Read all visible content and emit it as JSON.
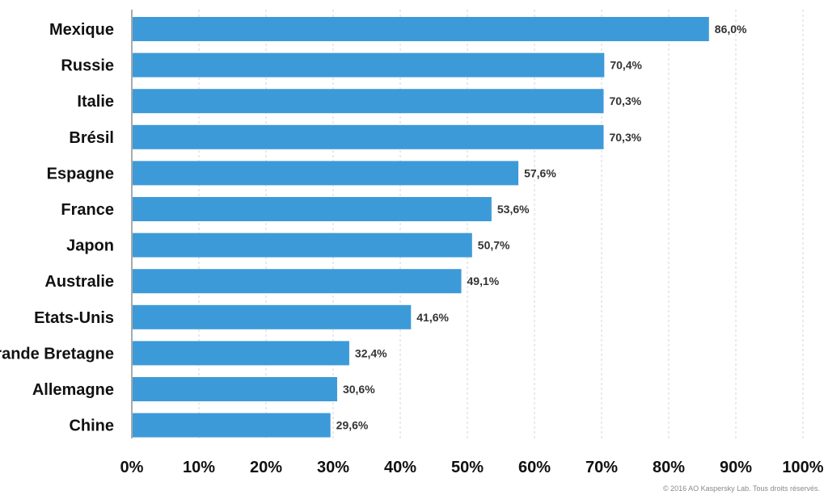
{
  "chart_data": {
    "type": "bar",
    "orientation": "horizontal",
    "categories": [
      "Mexique",
      "Russie",
      "Italie",
      "Brésil",
      "Espagne",
      "France",
      "Japon",
      "Australie",
      "Etats-Unis",
      "Grande Bretagne",
      "Allemagne",
      "Chine"
    ],
    "values": [
      86.0,
      70.4,
      70.3,
      70.3,
      57.6,
      53.6,
      50.7,
      49.1,
      41.6,
      32.4,
      30.6,
      29.6
    ],
    "value_labels": [
      "86,0%",
      "70,4%",
      "70,3%",
      "70,3%",
      "57,6%",
      "53,6%",
      "50,7%",
      "49,1%",
      "41,6%",
      "32,4%",
      "30,6%",
      "29,6%"
    ],
    "xlim": [
      0,
      100
    ],
    "x_ticks": [
      "0%",
      "10%",
      "20%",
      "30%",
      "40%",
      "50%",
      "60%",
      "70%",
      "80%",
      "90%",
      "100%"
    ],
    "grid": true,
    "bar_color": "#3d9ad8",
    "title": "",
    "xlabel": "",
    "ylabel": ""
  },
  "footer": "© 2016 AO Kaspersky Lab. Tous droits réservés."
}
